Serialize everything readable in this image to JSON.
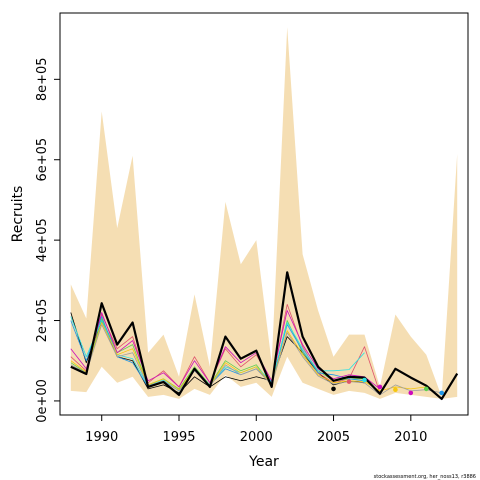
{
  "chart_data": {
    "type": "line",
    "title": "",
    "xlabel": "Year",
    "ylabel": "Recruits",
    "xlim": [
      1987.3,
      2013.7
    ],
    "ylim": [
      -35000,
      965000
    ],
    "x_ticks": [
      1990,
      1995,
      2000,
      2005,
      2010
    ],
    "x_tick_labels": [
      "1990",
      "1995",
      "2000",
      "2005",
      "2010"
    ],
    "y_ticks": [
      0,
      200000,
      400000,
      600000,
      800000
    ],
    "y_tick_labels": [
      "0e+00",
      "2e+05",
      "4e+05",
      "6e+05",
      "8e+05"
    ],
    "grid": false,
    "footer": "stockassessment.org, her_noss13, r3886",
    "band": {
      "name": "confidence interval",
      "color": "#f5deb3",
      "x": [
        1988,
        1989,
        1990,
        1991,
        1992,
        1993,
        1994,
        1995,
        1996,
        1997,
        1998,
        1999,
        2000,
        2001,
        2002,
        2003,
        2004,
        2005,
        2006,
        2007,
        2008,
        2009,
        2010,
        2011,
        2012,
        2013
      ],
      "lower": [
        25000,
        22000,
        85000,
        45000,
        60000,
        10000,
        15000,
        5000,
        30000,
        15000,
        65000,
        35000,
        45000,
        10000,
        110000,
        45000,
        30000,
        15000,
        25000,
        20000,
        5000,
        20000,
        15000,
        10000,
        5000,
        10000
      ],
      "upper": [
        290000,
        205000,
        720000,
        430000,
        610000,
        120000,
        165000,
        60000,
        265000,
        85000,
        495000,
        340000,
        400000,
        95000,
        930000,
        365000,
        225000,
        110000,
        165000,
        165000,
        35000,
        215000,
        160000,
        115000,
        10000,
        615000
      ]
    },
    "series": [
      {
        "name": "",
        "color": "#000000",
        "width": 2.2,
        "x": [
          1988,
          1989,
          1990,
          1991,
          1992,
          1993,
          1994,
          1995,
          1996,
          1997,
          1998,
          1999,
          2000,
          2001,
          2002,
          2003,
          2004,
          2005,
          2006,
          2007,
          2008,
          2009,
          2010,
          2011,
          2012,
          2013
        ],
        "values": [
          85000,
          67000,
          243000,
          140000,
          195000,
          35000,
          47000,
          15000,
          80000,
          35000,
          160000,
          105000,
          125000,
          35000,
          320000,
          160000,
          85000,
          50000,
          60000,
          58000,
          18000,
          80000,
          58000,
          38000,
          5000,
          68000
        ]
      },
      {
        "name": "",
        "color": "#000000",
        "width": 0.8,
        "x": [
          1988,
          1989,
          1990,
          1991,
          1992,
          1993,
          1994,
          1995,
          1996,
          1997,
          1998,
          1999,
          2000,
          2001,
          2002,
          2003,
          2004,
          2005,
          2006,
          2007
        ],
        "values": [
          220000,
          95000,
          200000,
          110000,
          100000,
          30000,
          40000,
          20000,
          60000,
          35000,
          60000,
          50000,
          60000,
          50000,
          160000,
          120000,
          70000,
          40000,
          50000,
          45000
        ]
      },
      {
        "name": "",
        "color": "#df536b",
        "width": 0.8,
        "x": [
          1988,
          1989,
          1990,
          1991,
          1992,
          1993,
          1994,
          1995,
          1996,
          1997,
          1998,
          1999,
          2000,
          2001,
          2002,
          2003,
          2004,
          2005,
          2006,
          2007,
          2008
        ],
        "values": [
          110000,
          75000,
          215000,
          130000,
          160000,
          45000,
          75000,
          35000,
          110000,
          45000,
          130000,
          85000,
          115000,
          45000,
          240000,
          135000,
          70000,
          45000,
          55000,
          135000,
          20000
        ]
      },
      {
        "name": "",
        "color": "#61d04f",
        "width": 0.8,
        "x": [
          1988,
          1989,
          1990,
          1991,
          1992,
          1993,
          1994,
          1995,
          1996,
          1997,
          1998,
          1999,
          2000,
          2001,
          2002,
          2003,
          2004,
          2005,
          2006,
          2007
        ],
        "values": [
          95000,
          70000,
          205000,
          120000,
          140000,
          40000,
          55000,
          30000,
          85000,
          40000,
          100000,
          75000,
          90000,
          40000,
          200000,
          120000,
          75000,
          50000,
          55000,
          55000
        ]
      },
      {
        "name": "",
        "color": "#2297e6",
        "width": 0.8,
        "x": [
          1988,
          1989,
          1990,
          1991,
          1992,
          1993,
          1994,
          1995,
          1996,
          1997,
          1998,
          1999,
          2000,
          2001,
          2002,
          2003,
          2004,
          2005,
          2006,
          2007
        ],
        "values": [
          200000,
          100000,
          210000,
          110000,
          95000,
          35000,
          50000,
          25000,
          75000,
          40000,
          80000,
          65000,
          80000,
          45000,
          190000,
          125000,
          70000,
          65000,
          55000,
          50000
        ]
      },
      {
        "name": "",
        "color": "#28e2e5",
        "width": 0.8,
        "x": [
          1988,
          1989,
          1990,
          1991,
          1992,
          1993,
          1994,
          1995,
          1996,
          1997,
          1998,
          1999,
          2000,
          2001,
          2002,
          2003,
          2004,
          2005,
          2006,
          2007
        ],
        "values": [
          210000,
          110000,
          200000,
          115000,
          105000,
          38000,
          52000,
          25000,
          78000,
          40000,
          85000,
          70000,
          85000,
          48000,
          195000,
          130000,
          75000,
          75000,
          78000,
          120000
        ]
      },
      {
        "name": "",
        "color": "#cd0bbc",
        "width": 0.8,
        "x": [
          1988,
          1989,
          1990,
          1991,
          1992,
          1993,
          1994,
          1995,
          1996,
          1997,
          1998,
          1999,
          2000,
          2001,
          2002,
          2003,
          2004,
          2005,
          2006,
          2007,
          2008
        ],
        "values": [
          130000,
          80000,
          220000,
          120000,
          150000,
          50000,
          70000,
          35000,
          100000,
          45000,
          135000,
          95000,
          120000,
          50000,
          225000,
          140000,
          80000,
          55000,
          65000,
          60000,
          30000
        ]
      },
      {
        "name": "",
        "color": "#f5c710",
        "width": 0.8,
        "x": [
          1988,
          1989,
          1990,
          1991,
          1992,
          1993,
          1994,
          1995,
          1996,
          1997,
          1998,
          1999,
          2000,
          2001,
          2002,
          2003,
          2004,
          2005,
          2006,
          2007,
          2008,
          2009,
          2010,
          2011
        ],
        "values": [
          100000,
          72000,
          195000,
          115000,
          130000,
          40000,
          55000,
          28000,
          80000,
          38000,
          95000,
          70000,
          85000,
          42000,
          175000,
          115000,
          65000,
          45000,
          50000,
          48000,
          25000,
          35000,
          30000,
          35000
        ]
      },
      {
        "name": "",
        "color": "#9e9e9e",
        "width": 0.8,
        "x": [
          1988,
          1989,
          1990,
          1991,
          1992,
          1993,
          1994,
          1995,
          1996,
          1997,
          1998,
          1999,
          2000,
          2001,
          2002,
          2003,
          2004,
          2005,
          2006,
          2007,
          2008,
          2009,
          2010,
          2011,
          2012
        ],
        "values": [
          90000,
          70000,
          190000,
          110000,
          120000,
          38000,
          50000,
          25000,
          75000,
          36000,
          90000,
          65000,
          80000,
          40000,
          170000,
          110000,
          62000,
          42000,
          48000,
          45000,
          15000,
          40000,
          25000,
          28000,
          20000
        ]
      }
    ],
    "endpoints": [
      {
        "x": 2005,
        "y": 30000,
        "color": "#000000"
      },
      {
        "x": 2006,
        "y": 48000,
        "color": "#df536b"
      },
      {
        "x": 2007,
        "y": 52000,
        "color": "#28e2e5"
      },
      {
        "x": 2008,
        "y": 35000,
        "color": "#cd0bbc"
      },
      {
        "x": 2009,
        "y": 28000,
        "color": "#f5c710"
      },
      {
        "x": 2010,
        "y": 20000,
        "color": "#cd0bbc"
      },
      {
        "x": 2011,
        "y": 30000,
        "color": "#61d04f"
      },
      {
        "x": 2012,
        "y": 20000,
        "color": "#2297e6"
      }
    ]
  }
}
